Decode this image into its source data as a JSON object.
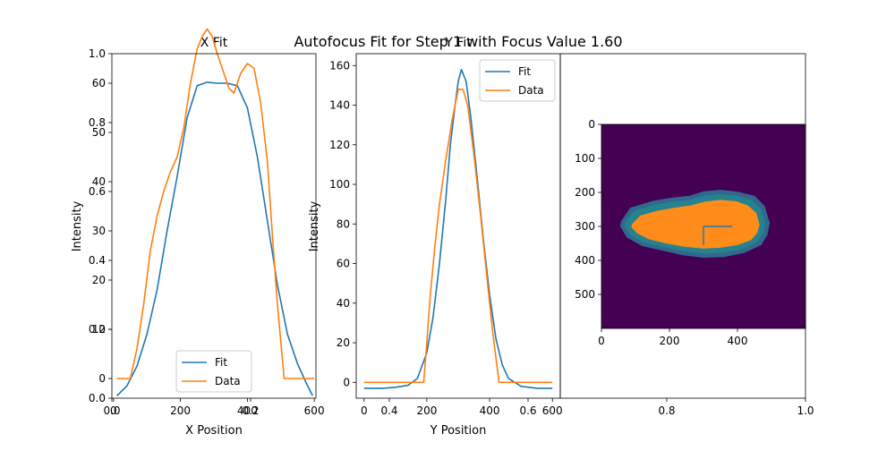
{
  "suptitle": "Autofocus Fit for Step 1 with Focus Value 1.60",
  "shared_axis": {
    "xticks": [
      0.0,
      0.2,
      0.4,
      0.6,
      0.8,
      1.0
    ],
    "xtick_labels": [
      "0.0",
      "0.2",
      "0.4",
      "0.6",
      "0.8",
      "1.0"
    ],
    "yticks": [
      0.0,
      0.2,
      0.4,
      0.6,
      0.8,
      1.0
    ],
    "ytick_labels": [
      "0.0",
      "0.2",
      "0.4",
      "0.6",
      "0.8",
      "1.0"
    ]
  },
  "colors": {
    "fit": "#1f77b4",
    "data": "#ff7f0e"
  },
  "chart_data": [
    {
      "type": "line",
      "title": "X Fit",
      "xlabel": "X Position",
      "ylabel": "Intensity",
      "xlim": [
        -5,
        605
      ],
      "ylim": [
        -4,
        66
      ],
      "xticks": [
        0,
        200,
        400,
        600
      ],
      "yticks": [
        0,
        10,
        20,
        30,
        40,
        50,
        60
      ],
      "legend": "lower-center",
      "series": [
        {
          "name": "Fit",
          "x": [
            10,
            40,
            70,
            100,
            130,
            160,
            190,
            220,
            250,
            280,
            310,
            340,
            370,
            400,
            430,
            460,
            490,
            520,
            550,
            580,
            595
          ],
          "y": [
            -3.5,
            -1.5,
            2.5,
            9,
            18,
            30,
            41,
            53,
            59.5,
            60.2,
            60,
            60,
            59.5,
            55,
            45,
            32,
            19,
            9,
            3,
            -1.5,
            -3.5
          ]
        },
        {
          "name": "Data",
          "x": [
            10,
            40,
            50,
            70,
            90,
            110,
            130,
            150,
            170,
            190,
            210,
            230,
            250,
            265,
            280,
            295,
            310,
            330,
            345,
            360,
            380,
            400,
            420,
            440,
            460,
            475,
            490,
            510,
            540,
            570,
            600
          ],
          "y": [
            0,
            0,
            0,
            6,
            15,
            26,
            33,
            38,
            42,
            45,
            51,
            60,
            67,
            69.5,
            71,
            69.5,
            66,
            62,
            59,
            58,
            62,
            64,
            63,
            56,
            44,
            29,
            15,
            0,
            0,
            0,
            0
          ]
        }
      ]
    },
    {
      "type": "line",
      "title": "Y Fit",
      "xlabel": "Y Position",
      "ylabel": "Intensity",
      "xlim": [
        -25,
        625
      ],
      "ylim": [
        -8,
        166
      ],
      "xticks": [
        0,
        200,
        400,
        600
      ],
      "yticks": [
        0,
        20,
        40,
        60,
        80,
        100,
        120,
        140,
        160
      ],
      "legend": "upper-right",
      "series": [
        {
          "name": "Fit",
          "x": [
            0,
            60,
            100,
            140,
            170,
            200,
            220,
            240,
            260,
            275,
            290,
            300,
            310,
            325,
            340,
            360,
            380,
            400,
            420,
            440,
            460,
            500,
            550,
            600
          ],
          "y": [
            -3,
            -3,
            -2.5,
            -1.5,
            2,
            15,
            33,
            60,
            92,
            120,
            140,
            152,
            158,
            152,
            134,
            104,
            72,
            44,
            22,
            9,
            2,
            -2,
            -3,
            -3
          ]
        },
        {
          "name": "Data",
          "x": [
            0,
            100,
            190,
            200,
            210,
            225,
            240,
            260,
            280,
            300,
            315,
            330,
            350,
            370,
            390,
            410,
            430,
            460,
            500,
            600
          ],
          "y": [
            0,
            0,
            0,
            20,
            42,
            68,
            90,
            112,
            132,
            148,
            148,
            140,
            115,
            86,
            55,
            25,
            0,
            0,
            0,
            0
          ]
        }
      ]
    },
    {
      "type": "heatmap",
      "xlim": [
        0,
        600
      ],
      "ylim": [
        600,
        0
      ],
      "xticks": [
        0,
        200,
        400
      ],
      "yticks": [
        0,
        100,
        200,
        300,
        400,
        500
      ],
      "background_color": "#440154",
      "contour_colors": [
        "#31688e",
        "#26828e",
        "#ff8c1a"
      ],
      "blob_levels": [
        {
          "name": "outer",
          "x": [
            58,
            85,
            150,
            210,
            260,
            300,
            350,
            400,
            450,
            480,
            495,
            488,
            470,
            420,
            360,
            300,
            240,
            175,
            120,
            75,
            55
          ],
          "y": [
            285,
            245,
            225,
            215,
            210,
            197,
            192,
            198,
            210,
            240,
            290,
            325,
            355,
            378,
            390,
            392,
            385,
            370,
            358,
            333,
            300
          ]
        },
        {
          "name": "middle",
          "x": [
            70,
            95,
            155,
            210,
            262,
            300,
            350,
            398,
            440,
            470,
            482,
            475,
            455,
            410,
            355,
            300,
            240,
            180,
            125,
            85,
            67
          ],
          "y": [
            287,
            255,
            236,
            227,
            222,
            210,
            205,
            210,
            222,
            250,
            292,
            322,
            348,
            368,
            378,
            380,
            373,
            360,
            348,
            325,
            298
          ]
        },
        {
          "name": "core",
          "x": [
            90,
            115,
            165,
            215,
            265,
            305,
            350,
            395,
            430,
            455,
            465,
            458,
            440,
            400,
            350,
            300,
            245,
            190,
            140,
            105,
            88
          ],
          "y": [
            293,
            268,
            254,
            245,
            238,
            227,
            222,
            226,
            238,
            260,
            295,
            320,
            340,
            355,
            363,
            365,
            360,
            350,
            338,
            320,
            302
          ]
        }
      ],
      "marker_lines": [
        {
          "x": [
            300,
            385
          ],
          "y": [
            300,
            300
          ]
        },
        {
          "x": [
            300,
            300
          ],
          "y": [
            300,
            355
          ]
        }
      ]
    }
  ]
}
